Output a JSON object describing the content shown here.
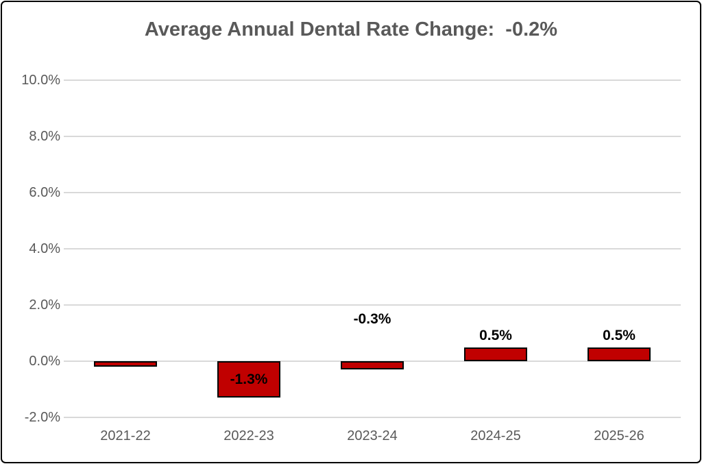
{
  "chart_data": {
    "type": "bar",
    "title": "Average Annual Dental Rate Change:  -0.2%",
    "categories": [
      "2021-22",
      "2022-23",
      "2023-24",
      "2024-25",
      "2025-26"
    ],
    "values": [
      -0.2,
      -1.3,
      -0.3,
      0.5,
      0.5
    ],
    "data_labels": [
      {
        "text": "",
        "placement": "none"
      },
      {
        "text": "-1.3%",
        "placement": "inside"
      },
      {
        "text": "-0.3%",
        "placement": "floating",
        "float_value": 1.5
      },
      {
        "text": "0.5%",
        "placement": "outside-end"
      },
      {
        "text": "0.5%",
        "placement": "outside-end"
      }
    ],
    "y_axis": {
      "min": -2,
      "max": 10,
      "step": 2,
      "tick_labels": [
        "10.0%",
        "8.0%",
        "6.0%",
        "4.0%",
        "2.0%",
        "0.0%",
        "-2.0%"
      ]
    },
    "xlabel": "",
    "ylabel": "",
    "grid": true,
    "legend": false,
    "colors": {
      "bar_fill": "#C00000",
      "bar_border": "#000000",
      "gridline": "#D9D9D9",
      "title_text": "#595959",
      "axis_text": "#595959",
      "data_label_text": "#000000",
      "frame_border": "#000000",
      "background": "#FFFFFF"
    }
  }
}
